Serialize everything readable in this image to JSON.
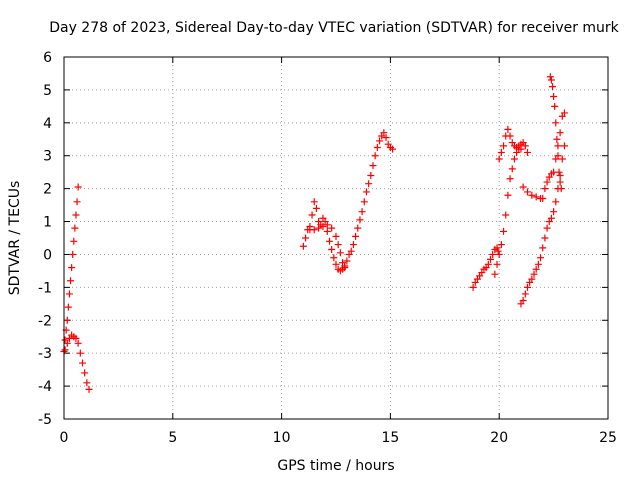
{
  "chart_data": {
    "type": "scatter",
    "title": "Day 278 of 2023, Sidereal Day-to-day VTEC variation (SDTVAR) for receiver murk",
    "xlabel": "GPS time / hours",
    "ylabel": "SDTVAR / TECUs",
    "xlim": [
      0,
      25
    ],
    "ylim": [
      -5,
      6
    ],
    "xticks": [
      0,
      5,
      10,
      15,
      20,
      25
    ],
    "yticks": [
      -5,
      -4,
      -3,
      -2,
      -1,
      0,
      1,
      2,
      3,
      4,
      5,
      6
    ],
    "grid": true,
    "marker": "+",
    "color": "#ff0000",
    "segments": [
      [
        [
          0.0,
          -2.95
        ],
        [
          0.05,
          -2.6
        ],
        [
          0.1,
          -2.3
        ],
        [
          0.15,
          -2.0
        ],
        [
          0.2,
          -1.6
        ],
        [
          0.25,
          -1.2
        ],
        [
          0.3,
          -0.8
        ],
        [
          0.35,
          -0.4
        ],
        [
          0.4,
          0.0
        ],
        [
          0.45,
          0.4
        ],
        [
          0.5,
          0.8
        ],
        [
          0.55,
          1.2
        ],
        [
          0.6,
          1.6
        ],
        [
          0.65,
          2.05
        ]
      ],
      [
        [
          0.05,
          -2.9
        ],
        [
          0.15,
          -2.7
        ],
        [
          0.25,
          -2.55
        ],
        [
          0.35,
          -2.45
        ],
        [
          0.45,
          -2.5
        ],
        [
          0.55,
          -2.55
        ],
        [
          0.65,
          -2.7
        ],
        [
          0.75,
          -3.0
        ],
        [
          0.85,
          -3.3
        ],
        [
          0.95,
          -3.6
        ],
        [
          1.05,
          -3.9
        ],
        [
          1.15,
          -4.1
        ]
      ],
      [
        [
          11.0,
          0.25
        ],
        [
          11.1,
          0.5
        ],
        [
          11.2,
          0.75
        ],
        [
          11.3,
          0.85
        ],
        [
          11.4,
          1.2
        ],
        [
          11.5,
          1.6
        ],
        [
          11.6,
          1.4
        ],
        [
          11.7,
          1.0
        ],
        [
          11.8,
          0.9
        ],
        [
          11.9,
          1.1
        ],
        [
          12.0,
          1.0
        ],
        [
          12.1,
          0.7
        ],
        [
          12.2,
          0.4
        ],
        [
          12.3,
          0.15
        ],
        [
          12.4,
          -0.1
        ],
        [
          12.5,
          -0.3
        ],
        [
          12.6,
          -0.45
        ],
        [
          12.7,
          -0.5
        ],
        [
          12.8,
          -0.45
        ],
        [
          12.9,
          -0.35
        ],
        [
          13.0,
          -0.2
        ],
        [
          13.1,
          0.0
        ],
        [
          13.2,
          0.1
        ],
        [
          13.3,
          0.3
        ],
        [
          13.4,
          0.55
        ],
        [
          13.5,
          0.8
        ],
        [
          13.6,
          1.05
        ],
        [
          13.7,
          1.3
        ],
        [
          13.8,
          1.6
        ],
        [
          13.9,
          1.9
        ],
        [
          14.0,
          2.15
        ],
        [
          14.1,
          2.4
        ],
        [
          14.2,
          2.7
        ],
        [
          14.3,
          3.0
        ],
        [
          14.4,
          3.25
        ],
        [
          14.5,
          3.45
        ],
        [
          14.6,
          3.6
        ],
        [
          14.7,
          3.7
        ],
        [
          14.8,
          3.55
        ],
        [
          14.9,
          3.35
        ],
        [
          15.0,
          3.25
        ],
        [
          15.1,
          3.2
        ]
      ],
      [
        [
          11.3,
          0.75
        ],
        [
          11.5,
          0.75
        ],
        [
          11.7,
          0.8
        ],
        [
          11.9,
          0.85
        ],
        [
          12.1,
          0.9
        ],
        [
          12.3,
          0.8
        ],
        [
          12.5,
          0.55
        ],
        [
          12.6,
          0.3
        ],
        [
          12.7,
          0.05
        ],
        [
          12.8,
          -0.25
        ],
        [
          12.9,
          -0.4
        ]
      ],
      [
        [
          18.8,
          -1.0
        ],
        [
          18.9,
          -0.85
        ],
        [
          19.0,
          -0.75
        ],
        [
          19.1,
          -0.65
        ],
        [
          19.2,
          -0.55
        ],
        [
          19.3,
          -0.45
        ],
        [
          19.4,
          -0.4
        ],
        [
          19.5,
          -0.3
        ],
        [
          19.6,
          -0.15
        ],
        [
          19.7,
          0.0
        ],
        [
          19.8,
          0.15
        ],
        [
          19.9,
          0.2
        ],
        [
          19.95,
          0.1
        ],
        [
          20.0,
          2.9
        ],
        [
          20.1,
          3.1
        ],
        [
          20.2,
          3.3
        ],
        [
          20.3,
          3.6
        ],
        [
          20.4,
          3.8
        ],
        [
          20.5,
          3.6
        ],
        [
          20.6,
          3.4
        ],
        [
          20.7,
          3.3
        ],
        [
          20.8,
          3.25
        ],
        [
          20.9,
          3.3
        ],
        [
          21.0,
          3.35
        ],
        [
          21.1,
          3.4
        ],
        [
          21.2,
          3.3
        ],
        [
          21.3,
          3.1
        ]
      ],
      [
        [
          19.8,
          -0.6
        ],
        [
          19.9,
          -0.3
        ],
        [
          20.0,
          0.0
        ],
        [
          20.1,
          0.3
        ],
        [
          20.2,
          0.7
        ],
        [
          20.3,
          1.2
        ],
        [
          20.4,
          1.8
        ],
        [
          20.5,
          2.3
        ],
        [
          20.6,
          2.6
        ],
        [
          20.7,
          2.9
        ],
        [
          20.8,
          3.1
        ],
        [
          20.9,
          3.2
        ],
        [
          21.0,
          3.2
        ]
      ],
      [
        [
          21.0,
          -1.5
        ],
        [
          21.1,
          -1.4
        ],
        [
          21.2,
          -1.2
        ],
        [
          21.3,
          -1.0
        ],
        [
          21.4,
          -0.85
        ],
        [
          21.5,
          -0.75
        ],
        [
          21.6,
          -0.6
        ],
        [
          21.7,
          -0.45
        ],
        [
          21.8,
          -0.3
        ],
        [
          21.9,
          -0.1
        ],
        [
          22.0,
          0.2
        ],
        [
          22.1,
          0.5
        ],
        [
          22.2,
          0.8
        ],
        [
          22.3,
          1.0
        ],
        [
          22.4,
          1.1
        ],
        [
          22.5,
          1.3
        ],
        [
          22.6,
          1.6
        ],
        [
          22.7,
          2.0
        ],
        [
          22.8,
          2.4
        ],
        [
          22.9,
          2.9
        ],
        [
          23.0,
          3.3
        ]
      ],
      [
        [
          21.1,
          2.05
        ],
        [
          21.3,
          1.9
        ],
        [
          21.5,
          1.8
        ],
        [
          21.7,
          1.75
        ],
        [
          21.9,
          1.7
        ],
        [
          22.0,
          1.7
        ],
        [
          22.1,
          2.0
        ],
        [
          22.2,
          2.2
        ],
        [
          22.3,
          2.35
        ],
        [
          22.4,
          2.45
        ],
        [
          22.5,
          2.5
        ],
        [
          22.6,
          2.9
        ],
        [
          22.7,
          3.3
        ],
        [
          22.8,
          3.7
        ],
        [
          22.9,
          4.2
        ],
        [
          23.0,
          4.3
        ]
      ],
      [
        [
          22.35,
          5.4
        ],
        [
          22.4,
          5.3
        ],
        [
          22.45,
          5.1
        ],
        [
          22.5,
          4.8
        ],
        [
          22.55,
          4.5
        ],
        [
          22.6,
          4.0
        ],
        [
          22.65,
          3.5
        ],
        [
          22.7,
          3.0
        ],
        [
          22.75,
          2.5
        ],
        [
          22.8,
          2.2
        ],
        [
          22.85,
          2.0
        ]
      ]
    ]
  }
}
